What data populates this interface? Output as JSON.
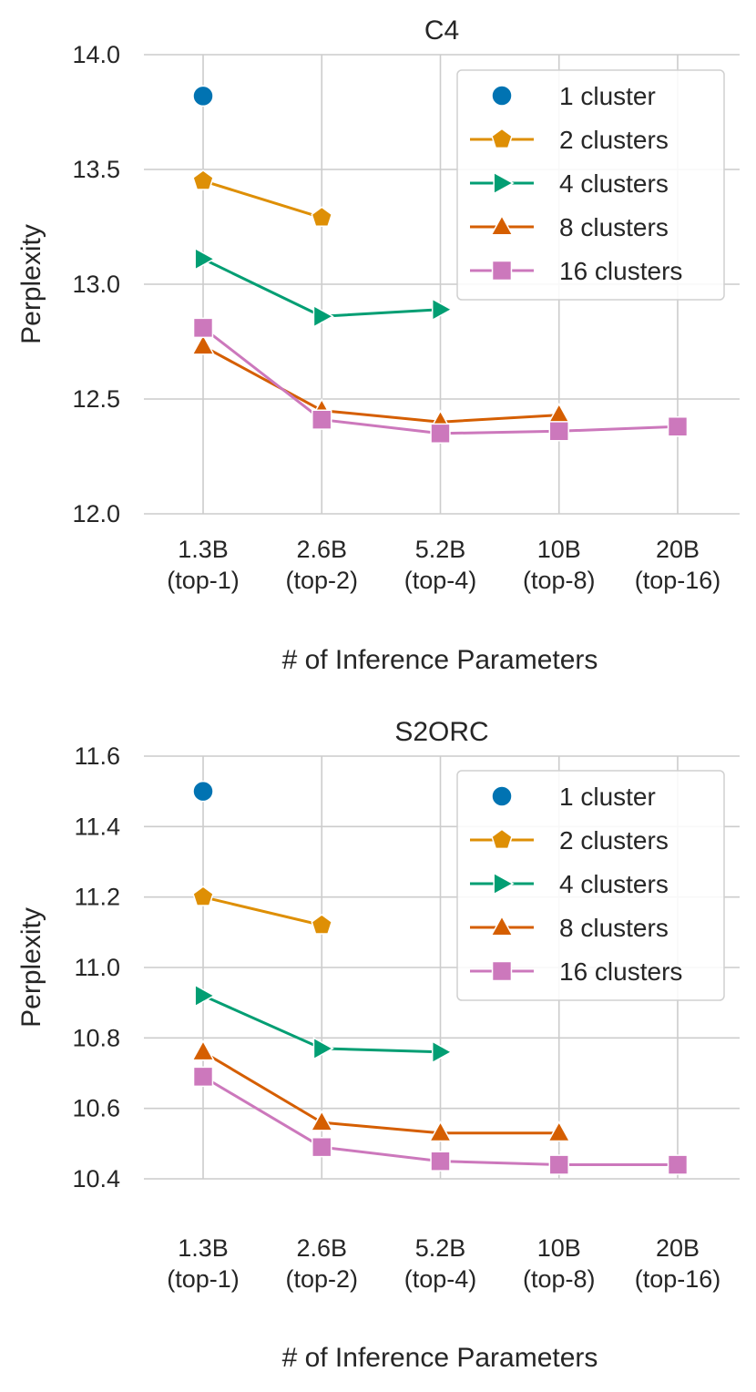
{
  "chart_data": [
    {
      "type": "line",
      "title": "C4",
      "xlabel": "# of Inference Parameters",
      "ylabel": "Perplexity",
      "categories": [
        "1.3B\n(top-1)",
        "2.6B\n(top-2)",
        "5.2B\n(top-4)",
        "10B\n(top-8)",
        "20B\n(top-16)"
      ],
      "ylim": [
        12.0,
        14.0
      ],
      "yticks": [
        "12.0",
        "12.5",
        "13.0",
        "13.5",
        "14.0"
      ],
      "grid": true,
      "legend_position": "top-right",
      "series": [
        {
          "name": "1 cluster",
          "marker": "circle",
          "color": "#0173b2",
          "values": [
            13.82,
            null,
            null,
            null,
            null
          ]
        },
        {
          "name": "2 clusters",
          "marker": "pentagon",
          "color": "#de8f05",
          "values": [
            13.45,
            13.29,
            null,
            null,
            null
          ]
        },
        {
          "name": "4 clusters",
          "marker": "triangle-right",
          "color": "#029e73",
          "values": [
            13.11,
            12.86,
            12.89,
            null,
            null
          ]
        },
        {
          "name": "8 clusters",
          "marker": "triangle-up",
          "color": "#d55e00",
          "values": [
            12.73,
            12.45,
            12.4,
            12.43,
            null
          ]
        },
        {
          "name": "16 clusters",
          "marker": "square",
          "color": "#cc78bc",
          "values": [
            12.81,
            12.41,
            12.35,
            12.36,
            12.38
          ]
        }
      ]
    },
    {
      "type": "line",
      "title": "S2ORC",
      "xlabel": "# of Inference Parameters",
      "ylabel": "Perplexity",
      "categories": [
        "1.3B\n(top-1)",
        "2.6B\n(top-2)",
        "5.2B\n(top-4)",
        "10B\n(top-8)",
        "20B\n(top-16)"
      ],
      "ylim": [
        10.4,
        11.6
      ],
      "yticks": [
        "10.4",
        "10.6",
        "10.8",
        "11.0",
        "11.2",
        "11.4",
        "11.6"
      ],
      "grid": true,
      "legend_position": "top-right",
      "series": [
        {
          "name": "1 cluster",
          "marker": "circle",
          "color": "#0173b2",
          "values": [
            11.5,
            null,
            null,
            null,
            null
          ]
        },
        {
          "name": "2 clusters",
          "marker": "pentagon",
          "color": "#de8f05",
          "values": [
            11.2,
            11.12,
            null,
            null,
            null
          ]
        },
        {
          "name": "4 clusters",
          "marker": "triangle-right",
          "color": "#029e73",
          "values": [
            10.92,
            10.77,
            10.76,
            null,
            null
          ]
        },
        {
          "name": "8 clusters",
          "marker": "triangle-up",
          "color": "#d55e00",
          "values": [
            10.76,
            10.56,
            10.53,
            10.53,
            null
          ]
        },
        {
          "name": "16 clusters",
          "marker": "square",
          "color": "#cc78bc",
          "values": [
            10.69,
            10.49,
            10.45,
            10.44,
            10.44
          ]
        }
      ]
    }
  ]
}
